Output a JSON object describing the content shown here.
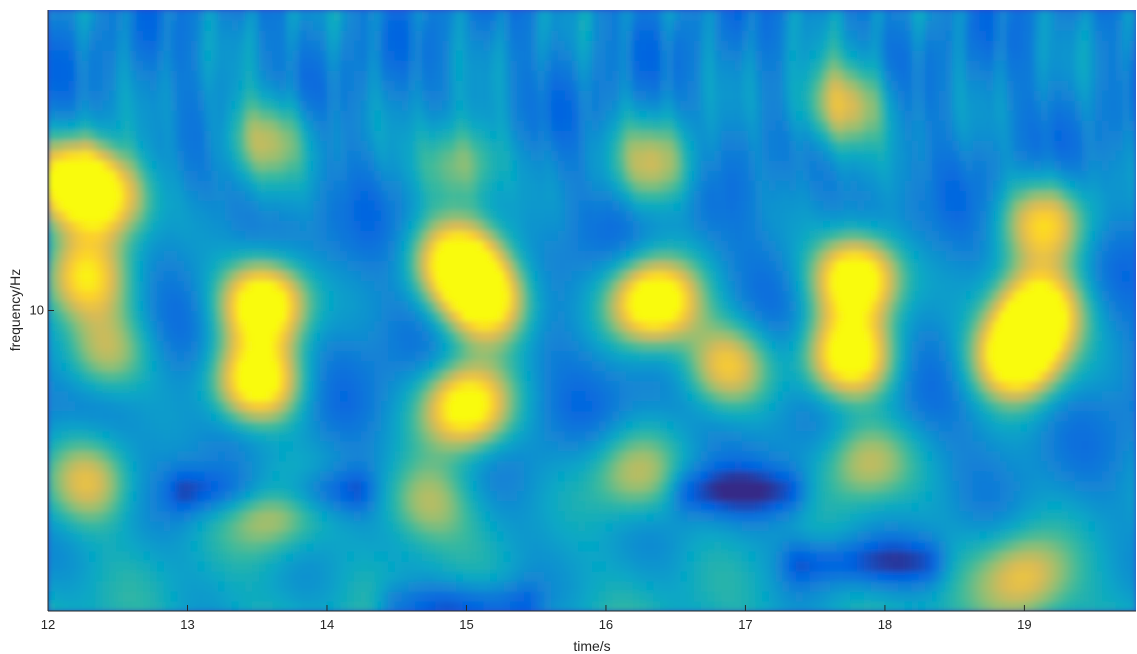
{
  "chart_data": {
    "type": "heatmap",
    "title": "",
    "xlabel": "time/s",
    "ylabel": "frequency/Hz",
    "xlim": [
      12,
      19.8
    ],
    "x_ticks": [
      12,
      13,
      14,
      15,
      16,
      17,
      18,
      19
    ],
    "x_tick_labels": [
      "12",
      "13",
      "14",
      "15",
      "16",
      "17",
      "18",
      "19"
    ],
    "y_scale": "log",
    "ylim": [
      2,
      50
    ],
    "y_ticks": [
      10
    ],
    "y_tick_labels": [
      "10"
    ],
    "colormap": "parula",
    "colormap_stops": [
      "#352a87",
      "#0363e1",
      "#1485d4",
      "#06a7c6",
      "#38b99e",
      "#92bf73",
      "#d9ba56",
      "#fcce2e",
      "#f9fb0e"
    ],
    "background_color": "#3b3fc9",
    "blobs": [
      {
        "t": 12.2,
        "f": 20,
        "intensity": 0.85,
        "note": ""
      },
      {
        "t": 12.25,
        "f": 12,
        "intensity": 0.65
      },
      {
        "t": 12.45,
        "f": 18,
        "intensity": 0.6
      },
      {
        "t": 12.4,
        "f": 8,
        "intensity": 0.5
      },
      {
        "t": 13.55,
        "f": 10.5,
        "intensity": 1.0
      },
      {
        "t": 13.5,
        "f": 6.8,
        "intensity": 0.85
      },
      {
        "t": 13.55,
        "f": 25,
        "intensity": 0.45
      },
      {
        "t": 13.6,
        "f": 3.5,
        "intensity": 0.45
      },
      {
        "t": 14.95,
        "f": 13,
        "intensity": 0.85
      },
      {
        "t": 15.15,
        "f": 10.5,
        "intensity": 0.85
      },
      {
        "t": 15.0,
        "f": 6.0,
        "intensity": 0.9
      },
      {
        "t": 14.95,
        "f": 22,
        "intensity": 0.45
      },
      {
        "t": 16.35,
        "f": 10.5,
        "intensity": 1.0
      },
      {
        "t": 16.35,
        "f": 22,
        "intensity": 0.45
      },
      {
        "t": 16.85,
        "f": 7.5,
        "intensity": 0.6
      },
      {
        "t": 17.8,
        "f": 12,
        "intensity": 1.0
      },
      {
        "t": 17.75,
        "f": 7.8,
        "intensity": 0.85
      },
      {
        "t": 17.7,
        "f": 30,
        "intensity": 0.55
      },
      {
        "t": 17.85,
        "f": 4.5,
        "intensity": 0.45
      },
      {
        "t": 18.95,
        "f": 7.8,
        "intensity": 1.0
      },
      {
        "t": 19.1,
        "f": 10,
        "intensity": 0.95
      },
      {
        "t": 19.15,
        "f": 16,
        "intensity": 0.6
      },
      {
        "t": 19.0,
        "f": 2.4,
        "intensity": 0.45
      },
      {
        "t": 12.3,
        "f": 4.0,
        "intensity": 0.45
      },
      {
        "t": 14.7,
        "f": 3.6,
        "intensity": 0.4
      },
      {
        "t": 16.2,
        "f": 4.2,
        "intensity": 0.4
      }
    ],
    "dark_bands": [
      {
        "t0": 13.0,
        "t1": 14.2,
        "f": 3.8,
        "intensity": -0.25
      },
      {
        "t0": 16.6,
        "t1": 17.3,
        "f": 3.8,
        "intensity": -0.25
      },
      {
        "t0": 17.4,
        "t1": 18.3,
        "f": 2.6,
        "intensity": -0.25
      },
      {
        "t0": 14.5,
        "t1": 15.4,
        "f": 2.05,
        "intensity": -0.25
      }
    ]
  }
}
